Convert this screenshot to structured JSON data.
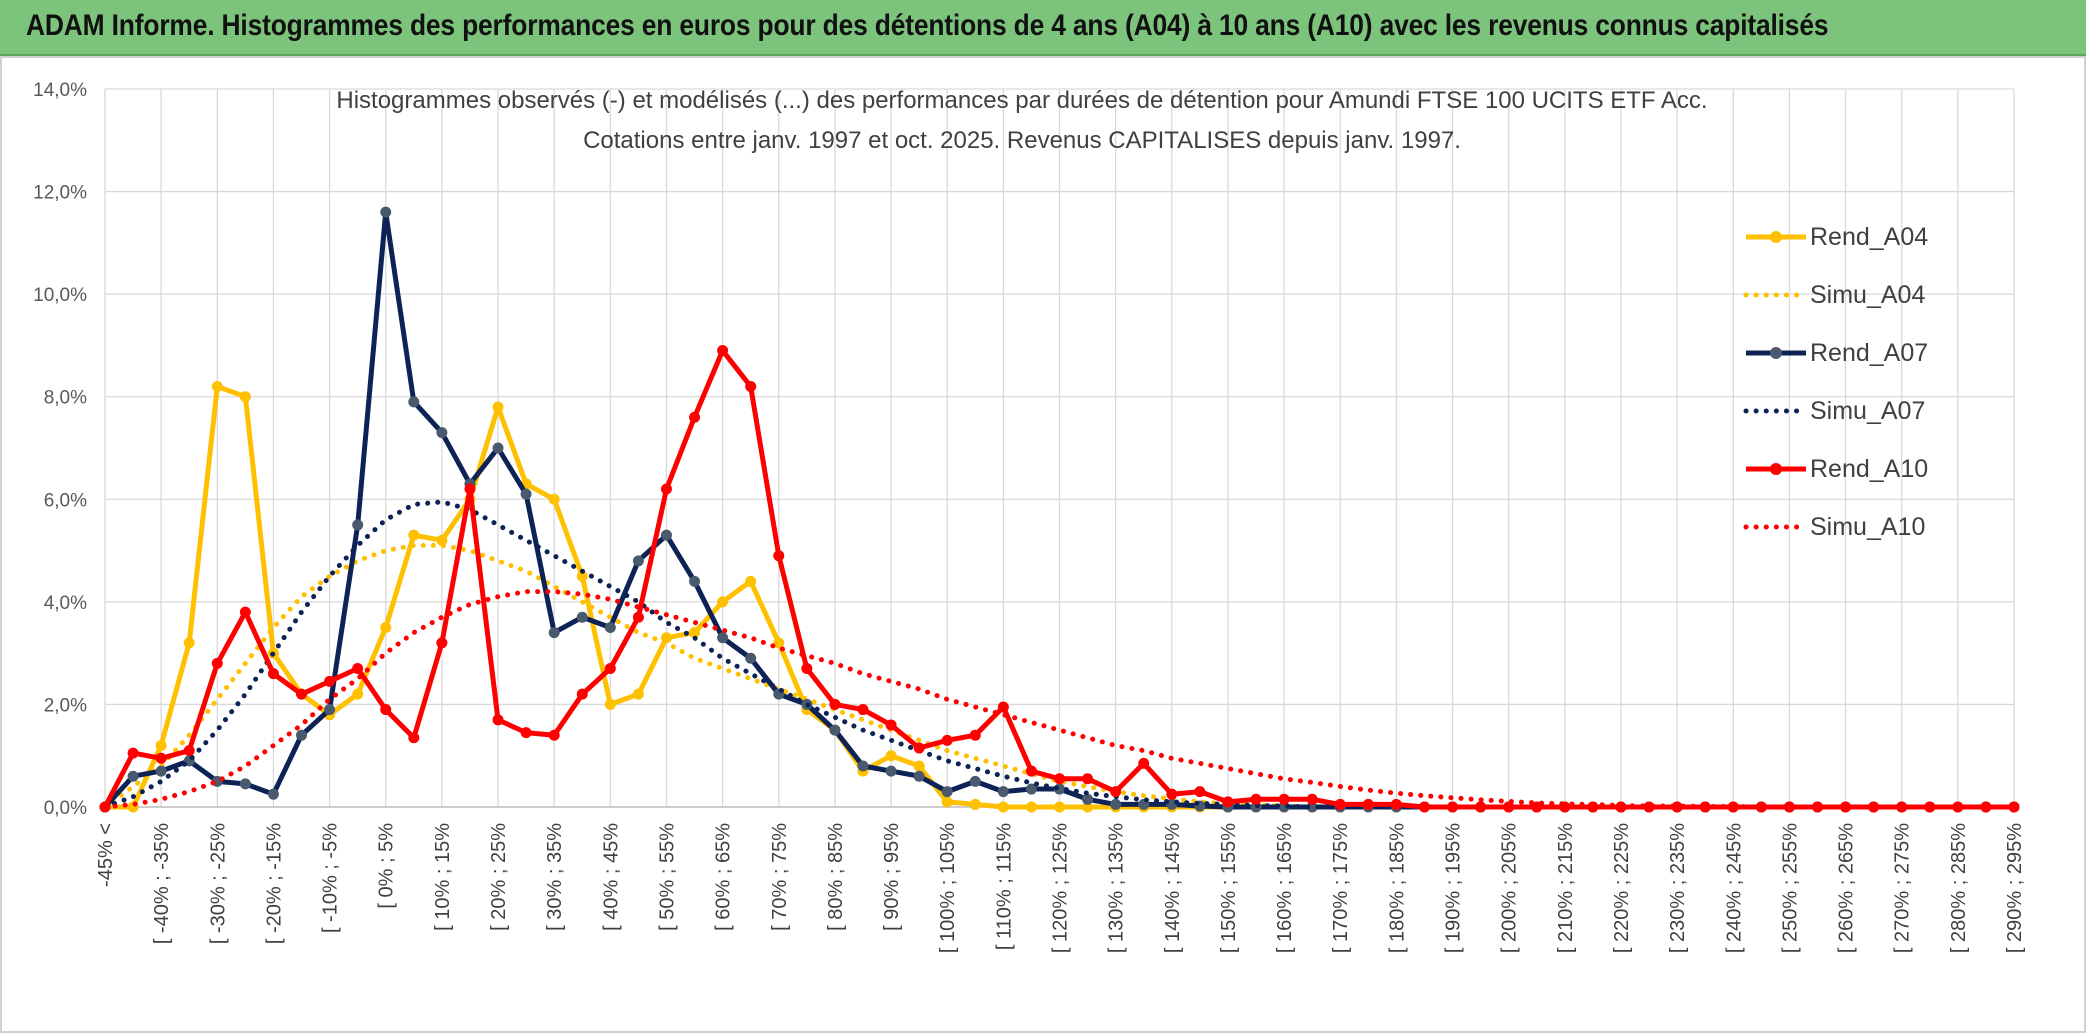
{
  "banner": {
    "title": "ADAM Informe. Histogrammes des performances en euros pour des détentions de 4 ans (A04) à 10 ans (A10) avec les revenus connus capitalisés"
  },
  "chart_data": {
    "type": "line",
    "title": "Histogrammes observés (-) et modélisés (...) des performances par durées de détention pour Amundi FTSE 100 UCITS ETF Acc.",
    "subtitle": "Cotations entre janv. 1997 et oct. 2025. Revenus CAPITALISES depuis janv. 1997.",
    "xlabel": "",
    "ylabel": "",
    "ylim": [
      0,
      14
    ],
    "y_ticks": [
      "0,0%",
      "2,0%",
      "4,0%",
      "6,0%",
      "8,0%",
      "10,0%",
      "12,0%",
      "14,0%"
    ],
    "grid": true,
    "legend_position": "right",
    "category_labels": [
      "-45% <",
      "[ -40% ; -35%",
      "[ -30% ; -25%",
      "[ -20% ; -15%",
      "[ -10% ; -5%",
      "[ 0% ; 5%",
      "[ 10% ; 15%",
      "[ 20% ; 25%",
      "[ 30% ; 35%",
      "[ 40% ; 45%",
      "[ 50% ; 55%",
      "[ 60% ; 65%",
      "[ 70% ; 75%",
      "[ 80% ; 85%",
      "[ 90% ; 95%",
      "[ 100% ; 105%",
      "[ 110% ; 115%",
      "[ 120% ; 125%",
      "[ 130% ; 135%",
      "[ 140% ; 145%",
      "[ 150% ; 155%",
      "[ 160% ; 165%",
      "[ 170% ; 175%",
      "[ 180% ; 185%",
      "[ 190% ; 195%",
      "[ 200% ; 205%",
      "[ 210% ; 215%",
      "[ 220% ; 225%",
      "[ 230% ; 235%",
      "[ 240% ; 245%",
      "[ 250% ; 255%",
      "[ 260% ; 265%",
      "[ 270% ; 275%",
      "[ 280% ; 285%",
      "[ 290% ; 295%"
    ],
    "x_points": 69,
    "series": [
      {
        "name": "Rend_A04",
        "style": "solid",
        "color": "#ffc000",
        "values": [
          0,
          0,
          1.2,
          3.2,
          8.2,
          8.0,
          3.0,
          2.2,
          1.8,
          2.2,
          3.5,
          5.3,
          5.2,
          6.0,
          7.8,
          6.3,
          6.0,
          4.5,
          2.0,
          2.2,
          3.3,
          3.4,
          4.0,
          4.4,
          3.2,
          1.9,
          1.5,
          0.7,
          1.0,
          0.8,
          0.1,
          0.05,
          0,
          0,
          0,
          0,
          0,
          0,
          0,
          0,
          0,
          0,
          0,
          0,
          0,
          0,
          0,
          0,
          0,
          0,
          0,
          0,
          0,
          0,
          0,
          0,
          0,
          0,
          0,
          0,
          0,
          0,
          0,
          0,
          0,
          0,
          0,
          0,
          0
        ]
      },
      {
        "name": "Simu_A04",
        "style": "dotted",
        "color": "#ffc000",
        "values": [
          0,
          0.4,
          0.8,
          1.4,
          2.1,
          2.8,
          3.5,
          4.1,
          4.5,
          4.8,
          5.0,
          5.1,
          5.1,
          5.0,
          4.8,
          4.6,
          4.3,
          4.0,
          3.7,
          3.4,
          3.2,
          2.9,
          2.7,
          2.5,
          2.3,
          2.1,
          1.9,
          1.7,
          1.5,
          1.3,
          1.1,
          0.95,
          0.8,
          0.65,
          0.5,
          0.4,
          0.3,
          0.22,
          0.16,
          0.1,
          0.06,
          0.04,
          0.02,
          0,
          0,
          0,
          0,
          0,
          0,
          0,
          0,
          0,
          0,
          0,
          0,
          0,
          0,
          0,
          0,
          0,
          0,
          0,
          0,
          0,
          0,
          0,
          0,
          0,
          0
        ]
      },
      {
        "name": "Rend_A07",
        "style": "solid",
        "color": "#0d2356",
        "values": [
          0,
          0.6,
          0.7,
          0.9,
          0.5,
          0.45,
          0.25,
          1.4,
          1.9,
          5.5,
          11.6,
          7.9,
          7.3,
          6.3,
          7.0,
          6.1,
          3.4,
          3.7,
          3.5,
          4.8,
          5.3,
          4.4,
          3.3,
          2.9,
          2.2,
          2.0,
          1.5,
          0.8,
          0.7,
          0.6,
          0.3,
          0.5,
          0.3,
          0.35,
          0.35,
          0.15,
          0.05,
          0.05,
          0.05,
          0.02,
          0,
          0,
          0,
          0,
          0,
          0,
          0,
          0,
          0,
          0,
          0,
          0,
          0,
          0,
          0,
          0,
          0,
          0,
          0,
          0,
          0,
          0,
          0,
          0,
          0,
          0,
          0,
          0,
          0
        ]
      },
      {
        "name": "Simu_A07",
        "style": "dotted",
        "color": "#0d2356",
        "values": [
          0,
          0.2,
          0.5,
          0.9,
          1.5,
          2.2,
          3.0,
          3.8,
          4.5,
          5.1,
          5.6,
          5.9,
          5.95,
          5.8,
          5.5,
          5.2,
          4.9,
          4.6,
          4.3,
          4.0,
          3.6,
          3.3,
          2.9,
          2.6,
          2.3,
          2.0,
          1.75,
          1.5,
          1.3,
          1.1,
          0.9,
          0.75,
          0.6,
          0.47,
          0.36,
          0.27,
          0.2,
          0.14,
          0.1,
          0.07,
          0.05,
          0.03,
          0.02,
          0,
          0,
          0,
          0,
          0,
          0,
          0,
          0,
          0,
          0,
          0,
          0,
          0,
          0,
          0,
          0,
          0,
          0,
          0,
          0,
          0,
          0,
          0,
          0,
          0,
          0
        ]
      },
      {
        "name": "Rend_A10",
        "style": "solid",
        "color": "#ff0000",
        "values": [
          0,
          1.05,
          0.95,
          1.1,
          2.8,
          3.8,
          2.6,
          2.2,
          2.45,
          2.7,
          1.9,
          1.35,
          3.2,
          6.2,
          1.7,
          1.45,
          1.4,
          2.2,
          2.7,
          3.7,
          6.2,
          7.6,
          8.9,
          8.2,
          4.9,
          2.7,
          2.0,
          1.9,
          1.6,
          1.15,
          1.3,
          1.4,
          1.95,
          0.7,
          0.55,
          0.55,
          0.3,
          0.85,
          0.25,
          0.3,
          0.1,
          0.15,
          0.15,
          0.15,
          0.05,
          0.05,
          0.05,
          0,
          0,
          0,
          0,
          0,
          0,
          0,
          0,
          0,
          0,
          0,
          0,
          0,
          0,
          0,
          0,
          0,
          0,
          0,
          0,
          0,
          0
        ]
      },
      {
        "name": "Simu_A10",
        "style": "dotted",
        "color": "#ff0000",
        "values": [
          0,
          0.05,
          0.15,
          0.3,
          0.5,
          0.8,
          1.2,
          1.6,
          2.1,
          2.5,
          3.0,
          3.4,
          3.7,
          3.95,
          4.1,
          4.2,
          4.2,
          4.15,
          4.05,
          3.9,
          3.75,
          3.6,
          3.45,
          3.3,
          3.1,
          2.95,
          2.8,
          2.6,
          2.45,
          2.3,
          2.1,
          1.95,
          1.8,
          1.65,
          1.5,
          1.35,
          1.2,
          1.1,
          0.95,
          0.85,
          0.75,
          0.65,
          0.55,
          0.48,
          0.4,
          0.33,
          0.27,
          0.22,
          0.18,
          0.14,
          0.11,
          0.08,
          0.06,
          0.05,
          0.03,
          0.02,
          0.02,
          0.01,
          0.01,
          0,
          0,
          0,
          0,
          0,
          0,
          0,
          0,
          0,
          0
        ]
      }
    ]
  }
}
